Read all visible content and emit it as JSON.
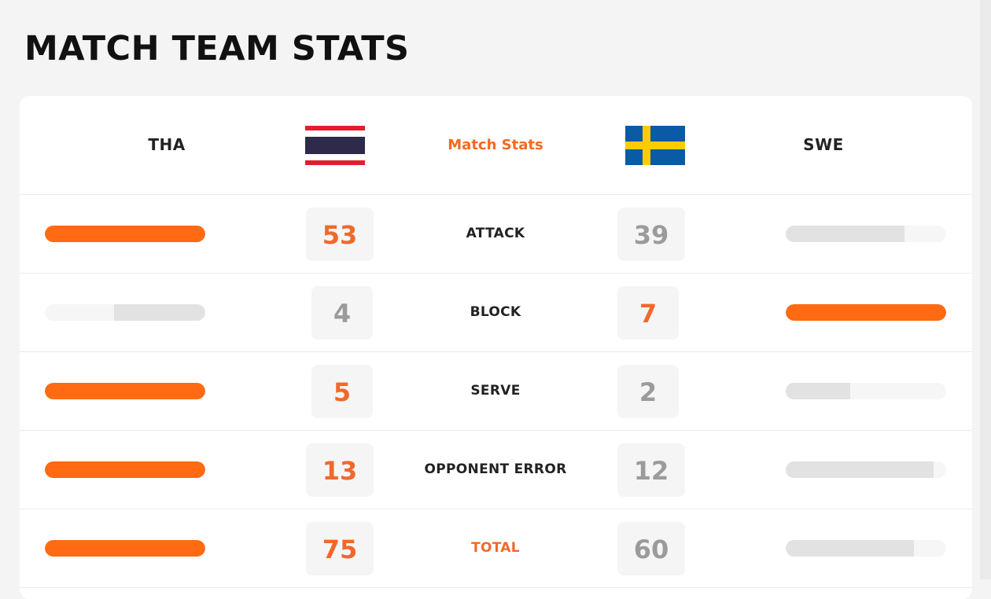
{
  "page": {
    "title": "MATCH TEAM STATS"
  },
  "header": {
    "home_code": "THA",
    "away_code": "SWE",
    "center_label": "Match Stats",
    "home_flag_icon": "thailand-flag-icon",
    "away_flag_icon": "sweden-flag-icon"
  },
  "colors": {
    "accent": "#ff6a13",
    "accent_text": "#f2682b",
    "muted_bar": "#e2e2e2",
    "muted_text": "#9b9b9b"
  },
  "stats": [
    {
      "label": "ATTACK",
      "home": "53",
      "away": "39",
      "home_share": 1.0,
      "away_share": 0.74,
      "leader": "home"
    },
    {
      "label": "BLOCK",
      "home": "4",
      "away": "7",
      "home_share": 0.57,
      "away_share": 1.0,
      "leader": "away"
    },
    {
      "label": "SERVE",
      "home": "5",
      "away": "2",
      "home_share": 1.0,
      "away_share": 0.4,
      "leader": "home"
    },
    {
      "label": "OPPONENT ERROR",
      "home": "13",
      "away": "12",
      "home_share": 1.0,
      "away_share": 0.92,
      "leader": "home"
    },
    {
      "label": "TOTAL",
      "home": "75",
      "away": "60",
      "home_share": 1.0,
      "away_share": 0.8,
      "leader": "home"
    }
  ]
}
